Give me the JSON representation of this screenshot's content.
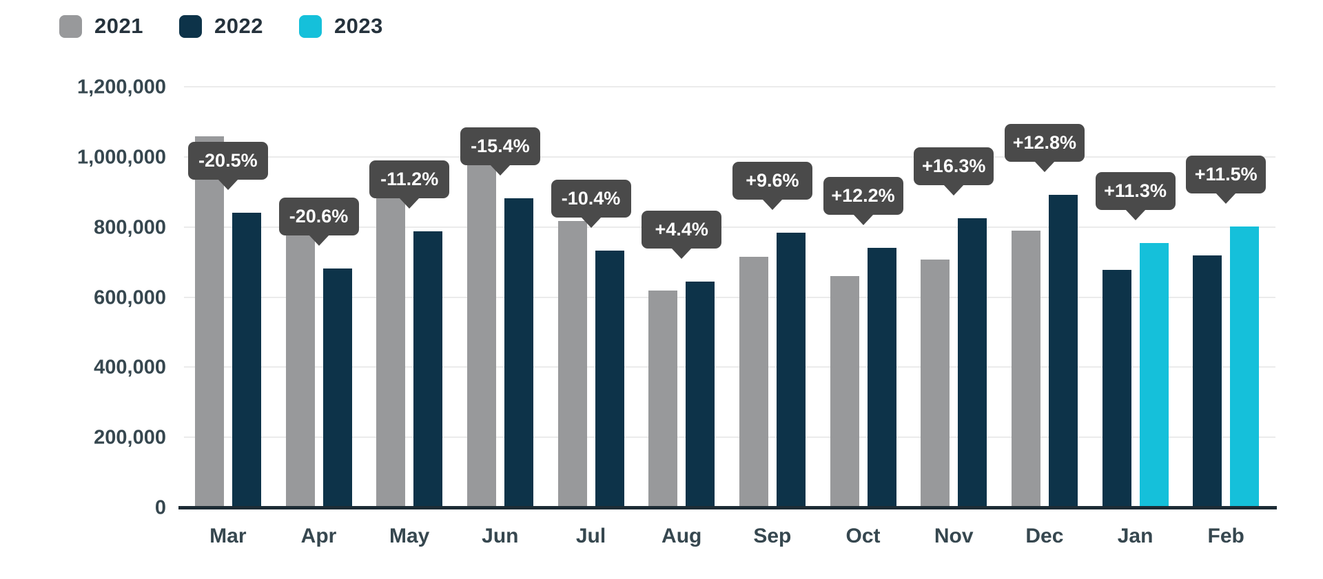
{
  "chart_data": {
    "type": "bar",
    "title": "",
    "xlabel": "",
    "ylabel": "",
    "categories": [
      "Mar",
      "Apr",
      "May",
      "Jun",
      "Jul",
      "Aug",
      "Sep",
      "Oct",
      "Nov",
      "Dec",
      "Jan",
      "Feb"
    ],
    "series": [
      {
        "name": "2021",
        "color": "#98999b",
        "values": [
          1060000,
          860000,
          890000,
          1045000,
          820000,
          620000,
          716000,
          662000,
          710000,
          792000,
          null,
          null
        ]
      },
      {
        "name": "2022",
        "color": "#0d3349",
        "values": [
          843000,
          683000,
          790000,
          884000,
          735000,
          647000,
          785000,
          743000,
          826000,
          893000,
          680000,
          720000
        ]
      },
      {
        "name": "2023",
        "color": "#15c0da",
        "values": [
          null,
          null,
          null,
          null,
          null,
          null,
          null,
          null,
          null,
          null,
          757000,
          803000
        ]
      }
    ],
    "pct_labels": [
      "-20.5%",
      "-20.6%",
      "-11.2%",
      "-15.4%",
      "-10.4%",
      "+4.4%",
      "+9.6%",
      "+12.2%",
      "+16.3%",
      "+12.8%",
      "+11.3%",
      "+11.5%"
    ],
    "ylim": [
      0,
      1200000
    ],
    "ytick_step": 200000,
    "yticks": [
      "0",
      "200,000",
      "400,000",
      "600,000",
      "800,000",
      "1,000,000",
      "1,200,000"
    ],
    "grid": "horizontal-only",
    "legend_position": "top-left",
    "colors": {
      "callout_bg": "#4a4a4a",
      "callout_text": "#ffffff",
      "axis_line": "#1d2c35",
      "gridline": "#ebebeb",
      "tick_text": "#36474f",
      "legend_text": "#25323c",
      "background": "#ffffff"
    }
  }
}
